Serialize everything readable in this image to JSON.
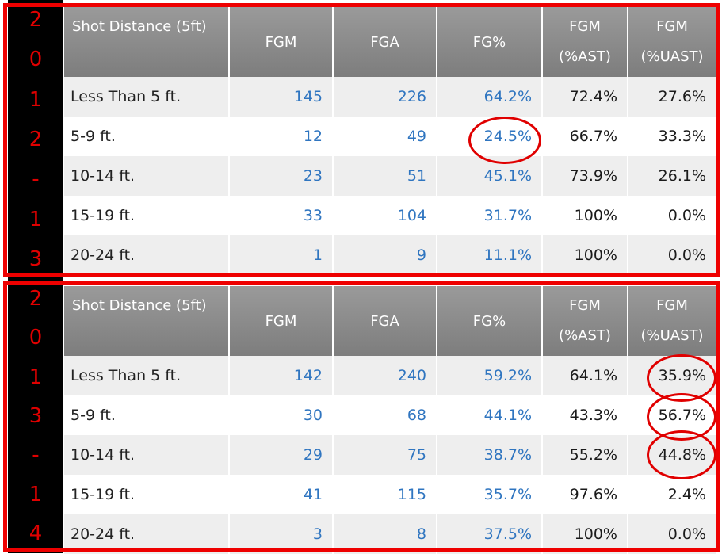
{
  "columns": [
    "Shot Distance (5ft)",
    "FGM",
    "FGA",
    "FG%",
    "FGM\n(%AST)",
    "FGM\n(%UAST)"
  ],
  "columns_display": {
    "dist": "Shot Distance (5ft)",
    "fgm": "FGM",
    "fga": "FGA",
    "fgpct": "FG%",
    "fgm_ast_1": "FGM",
    "fgm_ast_2": "(%AST)",
    "fgm_uast_1": "FGM",
    "fgm_uast_2": "(%UAST)"
  },
  "panels": [
    {
      "season_chars": [
        "2",
        "0",
        "1",
        "2",
        "-",
        "1",
        "3"
      ],
      "rows": [
        [
          "Less Than 5 ft.",
          "145",
          "226",
          "64.2%",
          "72.4%",
          "27.6%"
        ],
        [
          "5-9 ft.",
          "12",
          "49",
          "24.5%",
          "66.7%",
          "33.3%"
        ],
        [
          "10-14 ft.",
          "23",
          "51",
          "45.1%",
          "73.9%",
          "26.1%"
        ],
        [
          "15-19 ft.",
          "33",
          "104",
          "31.7%",
          "100%",
          "0.0%"
        ],
        [
          "20-24 ft.",
          "1",
          "9",
          "11.1%",
          "100%",
          "0.0%"
        ]
      ]
    },
    {
      "season_chars": [
        "2",
        "0",
        "1",
        "3",
        "-",
        "1",
        "4"
      ],
      "rows": [
        [
          "Less Than 5 ft.",
          "142",
          "240",
          "59.2%",
          "64.1%",
          "35.9%"
        ],
        [
          "5-9 ft.",
          "30",
          "68",
          "44.1%",
          "43.3%",
          "56.7%"
        ],
        [
          "10-14 ft.",
          "29",
          "75",
          "38.7%",
          "55.2%",
          "44.8%"
        ],
        [
          "15-19 ft.",
          "41",
          "115",
          "35.7%",
          "97.6%",
          "2.4%"
        ],
        [
          "20-24 ft.",
          "3",
          "8",
          "37.5%",
          "100%",
          "0.0%"
        ]
      ]
    }
  ],
  "colors": {
    "highlight": "#e00000",
    "link": "#2f75c0",
    "header_bg": "#8a8a8a"
  }
}
